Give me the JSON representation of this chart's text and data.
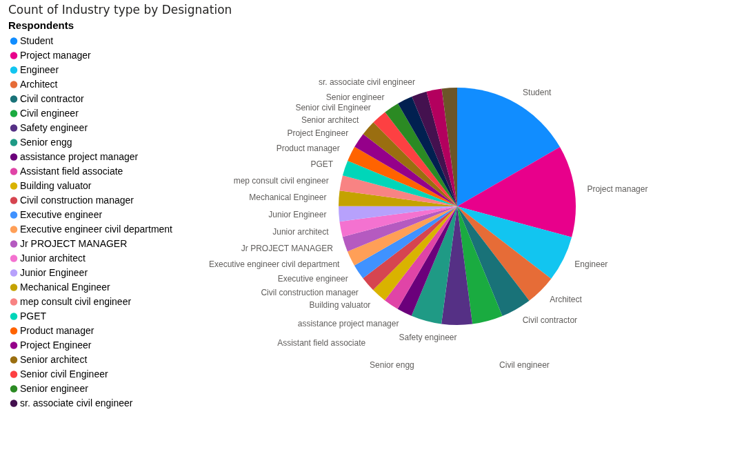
{
  "chart_data": {
    "type": "pie",
    "title": "Count of Industry type by Designation",
    "legend_title": "Respondents",
    "legend": "left",
    "categories": [
      "Student",
      "Project manager",
      "Engineer",
      "Architect",
      "Civil contractor",
      "Civil engineer",
      "Safety engineer",
      "Senior engg",
      "assistance project manager",
      "Assistant field associate",
      "Building valuator",
      "Civil construction manager",
      "Executive engineer",
      "Executive engineer civil department",
      "Jr PROJECT MANAGER",
      "Junior architect",
      "Junior Engineer",
      "Mechanical Engineer",
      "mep consult civil engineer",
      "PGET",
      "Product manager",
      "Project Engineer",
      "Senior architect",
      "Senior civil Engineer",
      "Senior engineer",
      null,
      "sr. associate civil engineer",
      null,
      null
    ],
    "values": [
      16.67,
      12.5,
      6.25,
      4.17,
      4.17,
      4.17,
      4.17,
      4.17,
      2.08,
      2.08,
      2.08,
      2.08,
      2.08,
      2.08,
      2.08,
      2.08,
      2.08,
      2.08,
      2.08,
      2.08,
      2.08,
      2.08,
      2.08,
      2.08,
      2.08,
      2.08,
      2.08,
      2.08,
      2.08
    ],
    "colors": [
      "#118dff",
      "#e8008b",
      "#12c5f0",
      "#e66c37",
      "#197278",
      "#1aab40",
      "#553085",
      "#1f9a85",
      "#6b007b",
      "#e044a7",
      "#d9b300",
      "#d64550",
      "#4092ff",
      "#ff9f57",
      "#b55ac0",
      "#f472d0",
      "#b7a1fc",
      "#c4a200",
      "#f88383",
      "#00d6b9",
      "#ff6300",
      "#95008a",
      "#9a6e10",
      "#fd4042",
      "#2b8a23",
      "#012050",
      "#44114f",
      "#b3005e",
      "#6b5528"
    ]
  }
}
